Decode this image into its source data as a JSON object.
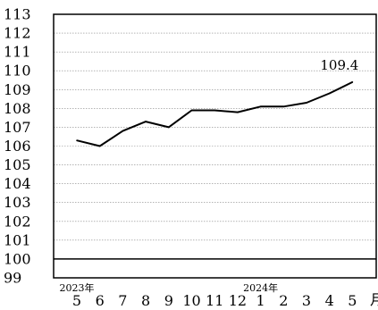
{
  "chart_data": {
    "type": "line",
    "title": "",
    "xlabel": "",
    "ylabel": "",
    "x_unit": "月",
    "year_labels": [
      {
        "label": "2023年",
        "category": "5"
      },
      {
        "label": "2024年",
        "category": "1"
      }
    ],
    "categories": [
      "5",
      "6",
      "7",
      "8",
      "9",
      "10",
      "11",
      "12",
      "1",
      "2",
      "3",
      "4",
      "5"
    ],
    "series": [
      {
        "values": [
          106.3,
          106.0,
          106.8,
          107.3,
          107.0,
          107.9,
          107.9,
          107.8,
          108.1,
          108.1,
          108.3,
          108.8,
          109.4
        ]
      }
    ],
    "data_label": {
      "index": 12,
      "text": "109.4"
    },
    "ylim": [
      99,
      113
    ],
    "yticks": [
      "99",
      "100",
      "101",
      "102",
      "103",
      "104",
      "105",
      "106",
      "107",
      "108",
      "109",
      "110",
      "111",
      "112",
      "113"
    ],
    "reference_line": 100,
    "grid": "horizontal-dotted",
    "legend": "none",
    "colors": {
      "line": "#000000",
      "grid": "#888888",
      "frame": "#000000"
    }
  }
}
